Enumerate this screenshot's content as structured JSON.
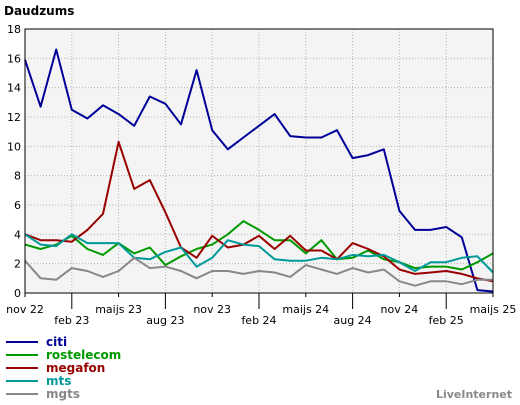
{
  "chart_data": {
    "type": "line",
    "title": "Daudzums",
    "brand": "LiveInternet",
    "ylim": [
      0,
      18
    ],
    "y_ticks": [
      "0",
      "2",
      "4",
      "6",
      "8",
      "10",
      "12",
      "14",
      "16",
      "18"
    ],
    "x_ticks": [
      {
        "label": "nov 22",
        "x": 0,
        "row": 0
      },
      {
        "label": "feb 23",
        "x": 3,
        "row": 1
      },
      {
        "label": "maijs 23",
        "x": 6,
        "row": 0
      },
      {
        "label": "aug 23",
        "x": 9,
        "row": 1
      },
      {
        "label": "nov 23",
        "x": 12,
        "row": 0
      },
      {
        "label": "feb 24",
        "x": 15,
        "row": 1
      },
      {
        "label": "maijs 24",
        "x": 18,
        "row": 0
      },
      {
        "label": "aug 24",
        "x": 21,
        "row": 1
      },
      {
        "label": "nov 24",
        "x": 24,
        "row": 0
      },
      {
        "label": "feb 25",
        "x": 27,
        "row": 1
      },
      {
        "label": "maijs 25",
        "x": 30,
        "row": 0
      }
    ],
    "grid": true,
    "xlim": [
      0,
      30
    ],
    "series": [
      {
        "name": "citi",
        "color": "#000099",
        "x": [
          0,
          1,
          2,
          3,
          4,
          5,
          6,
          7,
          8,
          9,
          10,
          11,
          12,
          13,
          14,
          15,
          16,
          17,
          18,
          19,
          20,
          21,
          22,
          23,
          24,
          25,
          26,
          27,
          28,
          29,
          30
        ],
        "values": [
          15.9,
          12.7,
          16.6,
          12.5,
          11.9,
          12.8,
          12.2,
          11.4,
          13.4,
          12.9,
          11.5,
          15.2,
          11.1,
          9.8,
          10.6,
          11.4,
          12.2,
          10.7,
          10.6,
          10.6,
          11.1,
          9.2,
          9.4,
          9.8,
          5.6,
          4.3,
          4.3,
          4.5,
          3.8,
          0.2,
          0.1
        ]
      },
      {
        "name": "rostelecom",
        "color": "#009900",
        "x": [
          0,
          1,
          2,
          3,
          4,
          5,
          6,
          7,
          8,
          9,
          10,
          11,
          12,
          13,
          14,
          15,
          16,
          17,
          18,
          19,
          20,
          21,
          22,
          23,
          24,
          25,
          26,
          27,
          28,
          29,
          30
        ],
        "values": [
          3.3,
          3.0,
          3.3,
          3.9,
          3.0,
          2.6,
          3.4,
          2.7,
          3.1,
          1.9,
          2.5,
          3.0,
          3.3,
          4.0,
          4.9,
          4.3,
          3.6,
          3.6,
          2.7,
          3.6,
          2.3,
          2.4,
          2.9,
          2.3,
          2.1,
          1.7,
          1.8,
          1.8,
          1.6,
          2.1,
          2.7
        ]
      },
      {
        "name": "megafon",
        "color": "#990000",
        "x": [
          0,
          1,
          2,
          3,
          4,
          5,
          6,
          7,
          8,
          9,
          10,
          11,
          12,
          13,
          14,
          15,
          16,
          17,
          18,
          19,
          20,
          21,
          22,
          23,
          24,
          25,
          26,
          27,
          28,
          29,
          30
        ],
        "values": [
          4.0,
          3.6,
          3.6,
          3.5,
          4.3,
          5.4,
          10.3,
          7.1,
          7.7,
          5.5,
          3.1,
          2.4,
          3.9,
          3.1,
          3.3,
          3.9,
          3.0,
          3.9,
          2.9,
          2.9,
          2.3,
          3.4,
          3.0,
          2.5,
          1.6,
          1.3,
          1.4,
          1.5,
          1.3,
          1.0,
          0.8
        ]
      },
      {
        "name": "mts",
        "color": "#009999",
        "x": [
          0,
          1,
          2,
          3,
          4,
          5,
          6,
          7,
          8,
          9,
          10,
          11,
          12,
          13,
          14,
          15,
          16,
          17,
          18,
          19,
          20,
          21,
          22,
          23,
          24,
          25,
          26,
          27,
          28,
          29,
          30
        ],
        "values": [
          4.0,
          3.3,
          3.2,
          4.0,
          3.4,
          3.4,
          3.4,
          2.4,
          2.3,
          2.8,
          3.1,
          1.8,
          2.4,
          3.6,
          3.3,
          3.2,
          2.3,
          2.2,
          2.2,
          2.4,
          2.3,
          2.6,
          2.5,
          2.6,
          2.1,
          1.5,
          2.1,
          2.1,
          2.4,
          2.5,
          1.4
        ]
      },
      {
        "name": "mgts",
        "color": "#888888",
        "x": [
          0,
          1,
          2,
          3,
          4,
          5,
          6,
          7,
          8,
          9,
          10,
          11,
          12,
          13,
          14,
          15,
          16,
          17,
          18,
          19,
          20,
          21,
          22,
          23,
          24,
          25,
          26,
          27,
          28,
          29,
          30
        ],
        "values": [
          2.2,
          1.0,
          0.9,
          1.7,
          1.5,
          1.1,
          1.5,
          2.4,
          1.7,
          1.8,
          1.5,
          1.0,
          1.5,
          1.5,
          1.3,
          1.5,
          1.4,
          1.1,
          1.9,
          1.6,
          1.3,
          1.7,
          1.4,
          1.6,
          0.8,
          0.5,
          0.8,
          0.8,
          0.6,
          0.9,
          0.9
        ]
      }
    ]
  }
}
